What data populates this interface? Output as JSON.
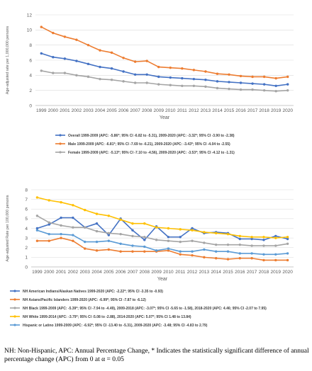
{
  "chart_data": [
    {
      "type": "line",
      "xlabel": "Year",
      "ylabel": "Age-adjusted rate per 1,000,000 persons",
      "ylim": [
        0,
        12
      ],
      "ytick_step": 2,
      "grid": true,
      "legend_position": "bottom",
      "x": [
        1999,
        2000,
        2001,
        2002,
        2003,
        2004,
        2005,
        2006,
        2007,
        2008,
        2009,
        2010,
        2011,
        2012,
        2013,
        2014,
        2015,
        2016,
        2017,
        2018,
        2019,
        2020
      ],
      "series": [
        {
          "name": "Overall 1999-2009 (APC: -5.86*; 95% CI -6.82 to -5.31), 2009-2020 (APC: -3.32*; 95% CI -3.90 to -2.38)",
          "color": "#4472C4",
          "values": [
            6.9,
            6.4,
            6.2,
            5.9,
            5.5,
            5.1,
            4.9,
            4.5,
            4.1,
            4.1,
            3.8,
            3.7,
            3.6,
            3.5,
            3.4,
            3.2,
            3.1,
            3.0,
            2.9,
            2.8,
            2.6,
            2.8
          ]
        },
        {
          "name": "Male  1999-2009 (APC: -6.81*; 95% CI -7.69 to -6.21), 2009-2020 (APC: -3.43*; 95% CI -4.04 to -2.55)",
          "color": "#ED7D31",
          "values": [
            10.4,
            9.6,
            9.1,
            8.7,
            8.0,
            7.3,
            7.0,
            6.3,
            5.8,
            5.9,
            5.1,
            5.0,
            4.9,
            4.7,
            4.5,
            4.2,
            4.1,
            3.9,
            3.8,
            3.8,
            3.6,
            3.8
          ]
        },
        {
          "name": "Female 1999-2009 (APC: -5.13*; 95% CI -7.10 to -4.56), 2009-2020 (APC: -3.53*; 95% CI -4.12 to -1.31)",
          "color": "#A5A5A5",
          "values": [
            4.6,
            4.3,
            4.3,
            4.0,
            3.8,
            3.5,
            3.4,
            3.2,
            3.0,
            3.0,
            2.8,
            2.7,
            2.6,
            2.6,
            2.5,
            2.3,
            2.2,
            2.1,
            2.1,
            2.0,
            1.9,
            2.0
          ]
        }
      ]
    },
    {
      "type": "line",
      "xlabel": "Year",
      "ylabel": "Age-adjusted Rate per 100,000 persons",
      "ylim": [
        0,
        8
      ],
      "ytick_step": 1,
      "grid": true,
      "legend_position": "bottom",
      "x": [
        1999,
        2000,
        2001,
        2002,
        2003,
        2004,
        2005,
        2006,
        2007,
        2008,
        2009,
        2010,
        2011,
        2012,
        2013,
        2014,
        2015,
        2016,
        2017,
        2018,
        2019,
        2020
      ],
      "series": [
        {
          "name": "NH American Indians/Alaskan Natives 1999-2020 (APC: -2.22*; 95% CI -3.35 to -0.93)",
          "color": "#4472C4",
          "values": [
            4.0,
            4.4,
            5.1,
            5.1,
            4.1,
            4.5,
            3.3,
            5.0,
            3.8,
            2.8,
            4.2,
            3.1,
            3.1,
            4.0,
            3.5,
            3.6,
            3.5,
            2.9,
            2.9,
            2.8,
            3.2,
            2.9
          ]
        },
        {
          "name": "NH Asians/Pacific Islanders 1999-2020 (APC: -6.99*; 95% CI -7.87 to -6.12)",
          "color": "#ED7D31",
          "values": [
            2.7,
            2.7,
            3.0,
            2.7,
            1.9,
            1.7,
            1.8,
            1.6,
            1.6,
            1.6,
            1.6,
            1.7,
            1.3,
            1.2,
            1.0,
            0.9,
            0.8,
            0.9,
            0.9,
            0.7,
            0.7,
            0.7
          ]
        },
        {
          "name": "NH Black  1999-2009 (APC: -5.39*; 95% CI -7.94 to -4.49), 2009-2018 (APC: -3.07*; 95% CI -5.65 to -1.58), 2018-2020 (APC: 4.46; 95% CI -2.07 to 7.95)",
          "color": "#A5A5A5",
          "values": [
            5.3,
            4.6,
            4.3,
            4.1,
            4.1,
            3.7,
            3.5,
            3.4,
            3.2,
            3.1,
            2.8,
            2.7,
            2.6,
            2.7,
            2.5,
            2.3,
            2.3,
            2.3,
            2.2,
            2.2,
            2.2,
            2.4
          ]
        },
        {
          "name": "NH White 1999-2014 (APC: -3.79*; 95% CI -5.08 to -2.88), 2014-2020 (APC: 5.07*; 95% CI 1.48 to 13.84)",
          "color": "#FFC000",
          "values": [
            7.2,
            6.9,
            6.7,
            6.4,
            5.9,
            5.5,
            5.3,
            4.9,
            4.5,
            4.5,
            4.1,
            4.0,
            3.9,
            3.8,
            3.6,
            3.5,
            3.4,
            3.2,
            3.1,
            3.1,
            3.0,
            3.1
          ]
        },
        {
          "name": "Hispanic or Latino 1999-2009 (APC: -6.92*; 95% CI -13.40 to -5.31), 2009-2020 (APC: -3.48; 95% CI -4.83 to 2.79)",
          "color": "#5B9BD5",
          "values": [
            3.8,
            3.4,
            3.4,
            3.3,
            2.6,
            2.6,
            2.7,
            2.4,
            2.2,
            2.1,
            1.7,
            1.9,
            1.6,
            1.6,
            1.8,
            1.6,
            1.6,
            1.4,
            1.4,
            1.3,
            1.3,
            1.4
          ]
        }
      ]
    }
  ],
  "footnote": "NH: Non-Hispanic, APC: Annual Percentage Change, * Indicates the statistically significant difference of annual percentage change (APC) from 0 at α = 0.05"
}
